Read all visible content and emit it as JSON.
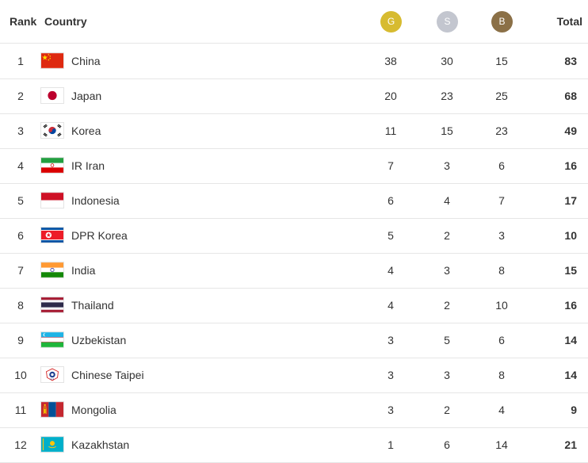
{
  "header": {
    "rank": "Rank",
    "country": "Country",
    "gold": "G",
    "silver": "S",
    "bronze": "B",
    "total": "Total"
  },
  "colors": {
    "gold": "#d7bb30",
    "silver": "#c3c6cf",
    "bronze": "#8b7047"
  },
  "rows": [
    {
      "rank": "1",
      "country": "China",
      "flag": "china-flag-icon",
      "gold": "38",
      "silver": "30",
      "bronze": "15",
      "total": "83"
    },
    {
      "rank": "2",
      "country": "Japan",
      "flag": "japan-flag-icon",
      "gold": "20",
      "silver": "23",
      "bronze": "25",
      "total": "68"
    },
    {
      "rank": "3",
      "country": "Korea",
      "flag": "korea-flag-icon",
      "gold": "11",
      "silver": "15",
      "bronze": "23",
      "total": "49"
    },
    {
      "rank": "4",
      "country": "IR Iran",
      "flag": "iran-flag-icon",
      "gold": "7",
      "silver": "3",
      "bronze": "6",
      "total": "16"
    },
    {
      "rank": "5",
      "country": "Indonesia",
      "flag": "indonesia-flag-icon",
      "gold": "6",
      "silver": "4",
      "bronze": "7",
      "total": "17"
    },
    {
      "rank": "6",
      "country": "DPR Korea",
      "flag": "dpr-korea-flag-icon",
      "gold": "5",
      "silver": "2",
      "bronze": "3",
      "total": "10"
    },
    {
      "rank": "7",
      "country": "India",
      "flag": "india-flag-icon",
      "gold": "4",
      "silver": "3",
      "bronze": "8",
      "total": "15"
    },
    {
      "rank": "8",
      "country": "Thailand",
      "flag": "thailand-flag-icon",
      "gold": "4",
      "silver": "2",
      "bronze": "10",
      "total": "16"
    },
    {
      "rank": "9",
      "country": "Uzbekistan",
      "flag": "uzbekistan-flag-icon",
      "gold": "3",
      "silver": "5",
      "bronze": "6",
      "total": "14"
    },
    {
      "rank": "10",
      "country": "Chinese Taipei",
      "flag": "chinese-taipei-flag-icon",
      "gold": "3",
      "silver": "3",
      "bronze": "8",
      "total": "14"
    },
    {
      "rank": "11",
      "country": "Mongolia",
      "flag": "mongolia-flag-icon",
      "gold": "3",
      "silver": "2",
      "bronze": "4",
      "total": "9"
    },
    {
      "rank": "12",
      "country": "Kazakhstan",
      "flag": "kazakhstan-flag-icon",
      "gold": "1",
      "silver": "6",
      "bronze": "14",
      "total": "21"
    }
  ]
}
